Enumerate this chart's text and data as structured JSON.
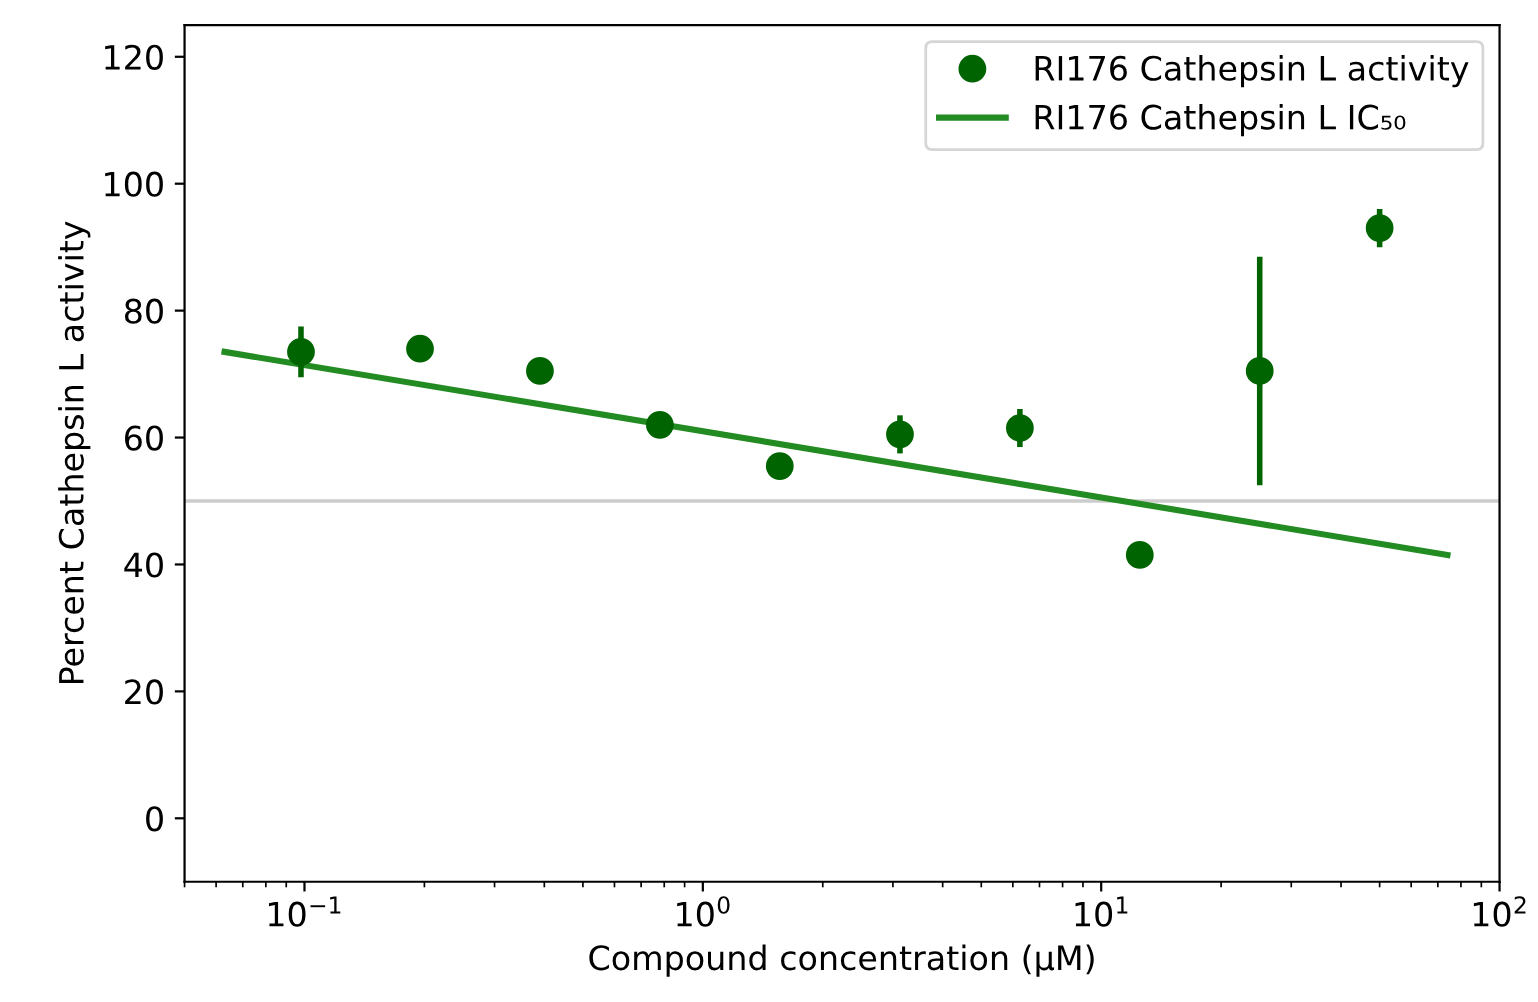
{
  "chart_data": {
    "type": "scatter",
    "xlabel": "Compound concentration (μM)",
    "ylabel": "Percent Cathepsin L activity",
    "log": "x",
    "xlim": [
      0.05,
      100
    ],
    "xticks": [
      {
        "value": 0.1,
        "label": "10$^{−1}$"
      },
      {
        "value": 1,
        "label": "10$^{0}$"
      },
      {
        "value": 10,
        "label": "10$^{1}$"
      },
      {
        "value": 100,
        "label": "10$^{2}$"
      }
    ],
    "ylim": [
      -10,
      125
    ],
    "yticks": [
      0,
      20,
      40,
      60,
      80,
      100,
      120
    ],
    "grid": false,
    "legend": "top right",
    "series": [
      {
        "name": "RI176 Cathepsin L activity",
        "marker": "circle",
        "color": "#006400",
        "x": [
          0.098,
          0.195,
          0.39,
          0.78,
          1.56,
          3.125,
          6.25,
          12.5,
          25,
          50
        ],
        "values": [
          73.5,
          74,
          70.5,
          62,
          55.5,
          60.5,
          61.5,
          41.5,
          70.5,
          93
        ],
        "errors": [
          4,
          1,
          1.5,
          1,
          1,
          3,
          3,
          1,
          18,
          3
        ]
      },
      {
        "name": "RI176 Cathepsin L IC₅₀",
        "type": "line",
        "marker": "none",
        "color": "#228b22",
        "x": [
          0.063,
          74
        ],
        "values": [
          73.5,
          41.5
        ]
      }
    ],
    "ref_lines": [
      {
        "axis": "y",
        "value": 50,
        "color": "#cccccc"
      }
    ]
  }
}
